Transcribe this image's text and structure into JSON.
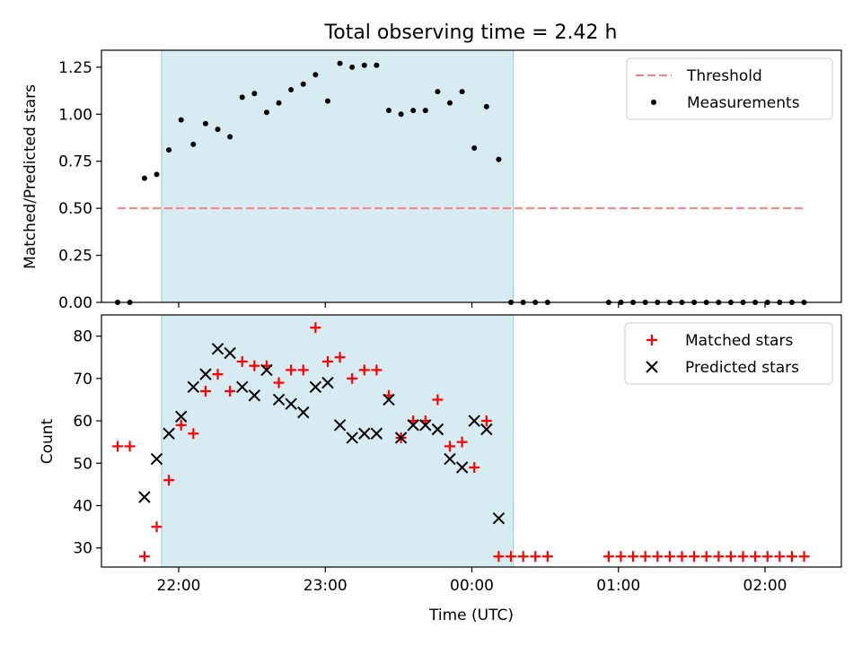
{
  "title": "Total observing time = 2.42 h",
  "chart_data": [
    {
      "type": "scatter",
      "ylabel": "Matched/Predicted stars",
      "ylim": [
        0,
        1.34
      ],
      "yticks": [
        0.0,
        0.25,
        0.5,
        0.75,
        1.0,
        1.25
      ],
      "ytick_labels": [
        "0.00",
        "0.25",
        "0.50",
        "0.75",
        "1.00",
        "1.25"
      ],
      "shaded_region": {
        "start": "21:53",
        "end": "00:17",
        "color": "#add8e6"
      },
      "threshold": {
        "name": "Threshold",
        "value": 0.5,
        "x_start": "21:35",
        "x_end": "02:16",
        "color": "#ff7f7f",
        "style": "dashed"
      },
      "legend": {
        "placement": "upper right",
        "entries": [
          "Threshold",
          "Measurements"
        ]
      },
      "series": [
        {
          "name": "Measurements",
          "color": "#000000",
          "marker": "dot",
          "points": [
            [
              "21:35",
              0.0
            ],
            [
              "21:40",
              0.0
            ],
            [
              "21:46",
              0.66
            ],
            [
              "21:51",
              0.68
            ],
            [
              "21:56",
              0.81
            ],
            [
              "22:01",
              0.97
            ],
            [
              "22:06",
              0.84
            ],
            [
              "22:11",
              0.95
            ],
            [
              "22:16",
              0.92
            ],
            [
              "22:21",
              0.88
            ],
            [
              "22:26",
              1.09
            ],
            [
              "22:31",
              1.11
            ],
            [
              "22:36",
              1.01
            ],
            [
              "22:41",
              1.06
            ],
            [
              "22:46",
              1.13
            ],
            [
              "22:51",
              1.16
            ],
            [
              "22:56",
              1.21
            ],
            [
              "23:01",
              1.07
            ],
            [
              "23:06",
              1.27
            ],
            [
              "23:11",
              1.25
            ],
            [
              "23:16",
              1.26
            ],
            [
              "23:21",
              1.26
            ],
            [
              "23:26",
              1.02
            ],
            [
              "23:31",
              1.0
            ],
            [
              "23:36",
              1.02
            ],
            [
              "23:41",
              1.02
            ],
            [
              "23:46",
              1.12
            ],
            [
              "23:51",
              1.06
            ],
            [
              "23:56",
              1.12
            ],
            [
              "00:01",
              0.82
            ],
            [
              "00:06",
              1.04
            ],
            [
              "00:11",
              0.76
            ],
            [
              "00:16",
              0.0
            ],
            [
              "00:21",
              0.0
            ],
            [
              "00:26",
              0.0
            ],
            [
              "00:31",
              0.0
            ],
            [
              "00:56",
              0.0
            ],
            [
              "01:01",
              0.0
            ],
            [
              "01:06",
              0.0
            ],
            [
              "01:11",
              0.0
            ],
            [
              "01:16",
              0.0
            ],
            [
              "01:21",
              0.0
            ],
            [
              "01:26",
              0.0
            ],
            [
              "01:31",
              0.0
            ],
            [
              "01:36",
              0.0
            ],
            [
              "01:41",
              0.0
            ],
            [
              "01:46",
              0.0
            ],
            [
              "01:51",
              0.0
            ],
            [
              "01:56",
              0.0
            ],
            [
              "02:01",
              0.0
            ],
            [
              "02:06",
              0.0
            ],
            [
              "02:11",
              0.0
            ],
            [
              "02:16",
              0.0
            ]
          ]
        }
      ]
    },
    {
      "type": "scatter",
      "xlabel": "Time (UTC)",
      "ylabel": "Count",
      "ylim": [
        25.5,
        85
      ],
      "yticks": [
        30,
        40,
        50,
        60,
        70,
        80
      ],
      "ytick_labels": [
        "30",
        "40",
        "50",
        "60",
        "70",
        "80"
      ],
      "xticks": [
        "22:00",
        "23:00",
        "00:00",
        "01:00",
        "02:00"
      ],
      "xtick_labels": [
        "22:00",
        "23:00",
        "00:00",
        "01:00",
        "02:00"
      ],
      "shaded_region": {
        "start": "21:53",
        "end": "00:17",
        "color": "#add8e6"
      },
      "legend": {
        "placement": "upper right",
        "entries": [
          "Matched stars",
          "Predicted stars"
        ]
      },
      "series": [
        {
          "name": "Matched stars",
          "color": "#ff0000",
          "marker": "plus",
          "points": [
            [
              "21:35",
              54
            ],
            [
              "21:40",
              54
            ],
            [
              "21:46",
              28
            ],
            [
              "21:51",
              35
            ],
            [
              "21:56",
              46
            ],
            [
              "22:01",
              59
            ],
            [
              "22:06",
              57
            ],
            [
              "22:11",
              67
            ],
            [
              "22:16",
              71
            ],
            [
              "22:21",
              67
            ],
            [
              "22:26",
              74
            ],
            [
              "22:31",
              73
            ],
            [
              "22:36",
              73
            ],
            [
              "22:41",
              69
            ],
            [
              "22:46",
              72
            ],
            [
              "22:51",
              72
            ],
            [
              "22:56",
              82
            ],
            [
              "23:01",
              74
            ],
            [
              "23:06",
              75
            ],
            [
              "23:11",
              70
            ],
            [
              "23:16",
              72
            ],
            [
              "23:21",
              72
            ],
            [
              "23:26",
              66
            ],
            [
              "23:31",
              56
            ],
            [
              "23:36",
              60
            ],
            [
              "23:41",
              60
            ],
            [
              "23:46",
              65
            ],
            [
              "23:51",
              54
            ],
            [
              "23:56",
              55
            ],
            [
              "00:01",
              49
            ],
            [
              "00:06",
              60
            ],
            [
              "00:11",
              28
            ],
            [
              "00:16",
              28
            ],
            [
              "00:21",
              28
            ],
            [
              "00:26",
              28
            ],
            [
              "00:31",
              28
            ],
            [
              "00:56",
              28
            ],
            [
              "01:01",
              28
            ],
            [
              "01:06",
              28
            ],
            [
              "01:11",
              28
            ],
            [
              "01:16",
              28
            ],
            [
              "01:21",
              28
            ],
            [
              "01:26",
              28
            ],
            [
              "01:31",
              28
            ],
            [
              "01:36",
              28
            ],
            [
              "01:41",
              28
            ],
            [
              "01:46",
              28
            ],
            [
              "01:51",
              28
            ],
            [
              "01:56",
              28
            ],
            [
              "02:01",
              28
            ],
            [
              "02:06",
              28
            ],
            [
              "02:11",
              28
            ],
            [
              "02:16",
              28
            ]
          ]
        },
        {
          "name": "Predicted stars",
          "color": "#000000",
          "marker": "x",
          "points": [
            [
              "21:46",
              42
            ],
            [
              "21:51",
              51
            ],
            [
              "21:56",
              57
            ],
            [
              "22:01",
              61
            ],
            [
              "22:06",
              68
            ],
            [
              "22:11",
              71
            ],
            [
              "22:16",
              77
            ],
            [
              "22:21",
              76
            ],
            [
              "22:26",
              68
            ],
            [
              "22:31",
              66
            ],
            [
              "22:36",
              72
            ],
            [
              "22:41",
              65
            ],
            [
              "22:46",
              64
            ],
            [
              "22:51",
              62
            ],
            [
              "22:56",
              68
            ],
            [
              "23:01",
              69
            ],
            [
              "23:06",
              59
            ],
            [
              "23:11",
              56
            ],
            [
              "23:16",
              57
            ],
            [
              "23:21",
              57
            ],
            [
              "23:26",
              65
            ],
            [
              "23:31",
              56
            ],
            [
              "23:36",
              59
            ],
            [
              "23:41",
              59
            ],
            [
              "23:46",
              58
            ],
            [
              "23:51",
              51
            ],
            [
              "23:56",
              49
            ],
            [
              "00:01",
              60
            ],
            [
              "00:06",
              58
            ],
            [
              "00:11",
              37
            ]
          ]
        }
      ]
    }
  ]
}
